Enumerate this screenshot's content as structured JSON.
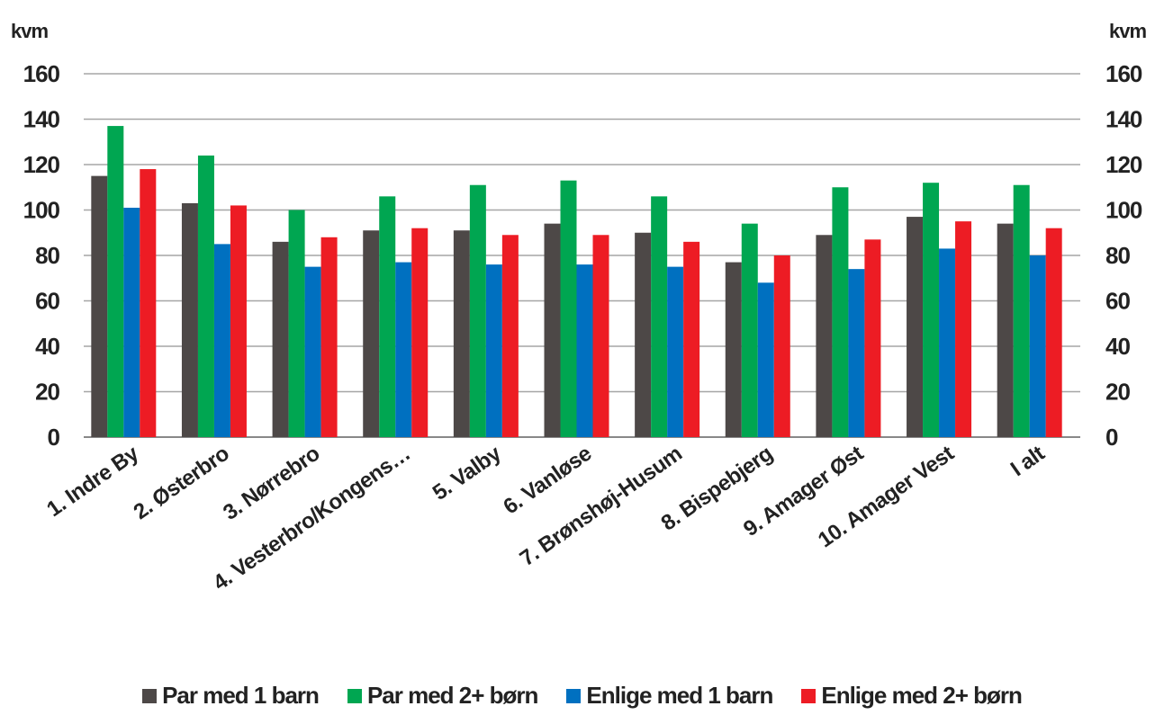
{
  "chart_data": {
    "type": "bar",
    "unit_left": "kvm",
    "unit_right": "kvm",
    "ylim": [
      0,
      160
    ],
    "yticks": [
      "0",
      "20",
      "40",
      "60",
      "80",
      "100",
      "120",
      "140",
      "160"
    ],
    "grid": true,
    "legend_position": "bottom",
    "categories": [
      "1. Indre By",
      "2. Østerbro",
      "3. Nørrebro",
      "4. Vesterbro/Kongens…",
      "5. Valby",
      "6. Vanløse",
      "7. Brønshøj-Husum",
      "8. Bispebjerg",
      "9. Amager Øst",
      "10. Amager Vest",
      "I alt"
    ],
    "series": [
      {
        "name": "Par med 1 barn",
        "color": "#4d4847",
        "values": [
          115,
          103,
          86,
          91,
          91,
          94,
          90,
          77,
          89,
          97,
          94
        ]
      },
      {
        "name": "Par med 2+ børn",
        "color": "#00a651",
        "values": [
          137,
          124,
          100,
          106,
          111,
          113,
          106,
          94,
          110,
          112,
          111
        ]
      },
      {
        "name": "Enlige med 1 barn",
        "color": "#0070c0",
        "values": [
          101,
          85,
          75,
          77,
          76,
          76,
          75,
          68,
          74,
          83,
          80
        ]
      },
      {
        "name": "Enlige med 2+ børn",
        "color": "#ed1c24",
        "values": [
          118,
          102,
          88,
          92,
          89,
          89,
          86,
          80,
          87,
          95,
          92
        ]
      }
    ]
  }
}
